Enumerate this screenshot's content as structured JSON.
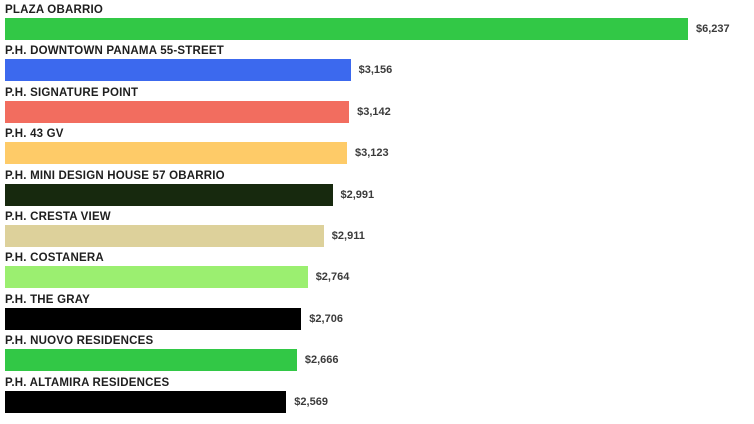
{
  "chart_data": {
    "type": "bar",
    "orientation": "horizontal",
    "title": "",
    "xlabel": "",
    "ylabel": "",
    "axes_visible": false,
    "grid": false,
    "legend": false,
    "xlim": [
      0,
      6237
    ],
    "categories": [
      "PLAZA OBARRIO",
      "P.H. DOWNTOWN PANAMA 55-STREET",
      "P.H. SIGNATURE POINT",
      "P.H. 43 GV",
      "P.H. MINI DESIGN HOUSE 57 OBARRIO",
      "P.H. CRESTA VIEW",
      "P.H. COSTANERA",
      "P.H. THE GRAY",
      "P.H. NUOVO RESIDENCES",
      "P.H. ALTAMIRA RESIDENCES"
    ],
    "values": [
      6237,
      3156,
      3142,
      3123,
      2991,
      2911,
      2764,
      2706,
      2666,
      2569
    ],
    "value_labels": [
      "$6,237",
      "$3,156",
      "$3,142",
      "$3,123",
      "$2,991",
      "$2,911",
      "$2,764",
      "$2,706",
      "$2,666",
      "$2,569"
    ],
    "bar_colors": [
      "#32c846",
      "#3c69ee",
      "#f26d5f",
      "#fecb68",
      "#17290e",
      "#ddd19b",
      "#9bef70",
      "#000000",
      "#32c846",
      "#000000"
    ]
  },
  "colors": {
    "background": "#ffffff",
    "category_label_text": "#1e1e1e",
    "value_label_text": "#3b3b3b"
  }
}
